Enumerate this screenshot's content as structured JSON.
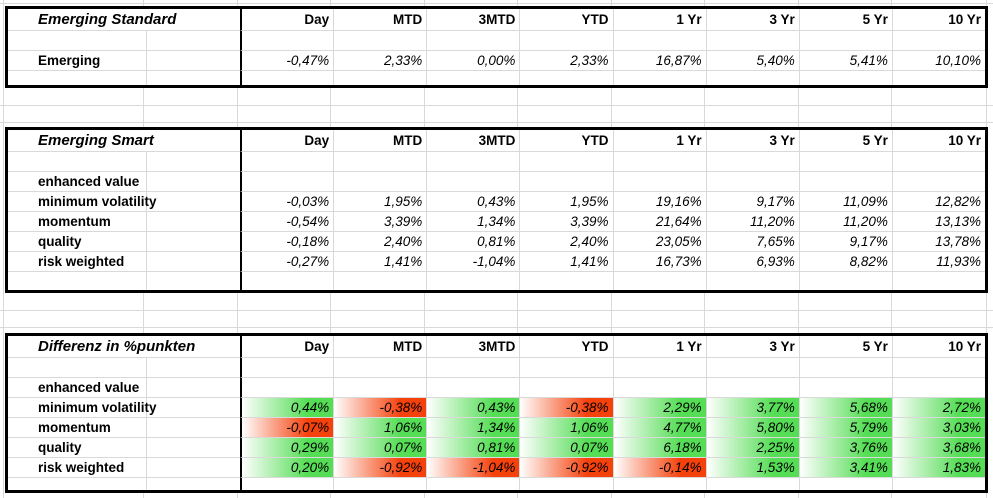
{
  "columns": [
    "Day",
    "MTD",
    "3MTD",
    "YTD",
    "1 Yr",
    "3 Yr",
    "5 Yr",
    "10 Yr"
  ],
  "colors": {
    "positive_fill": "#55dd55",
    "negative_fill": "#f5420d",
    "gridline": "#d9d9d9",
    "table_border": "#000000"
  },
  "sections": [
    {
      "title": "Emerging Standard",
      "rows": [
        {
          "label": "",
          "cells": [
            "",
            "",
            "",
            "",
            "",
            "",
            "",
            ""
          ]
        },
        {
          "label": "Emerging",
          "cells": [
            "-0,47%",
            "2,33%",
            "0,00%",
            "2,33%",
            "16,87%",
            "5,40%",
            "5,41%",
            "10,10%"
          ]
        },
        {
          "label": "",
          "cells": [
            "",
            "",
            "",
            "",
            "",
            "",
            "",
            ""
          ]
        }
      ]
    },
    {
      "title": "Emerging Smart",
      "rows": [
        {
          "label": "",
          "cells": [
            "",
            "",
            "",
            "",
            "",
            "",
            "",
            ""
          ]
        },
        {
          "label": "enhanced value",
          "cells": [
            "",
            "",
            "",
            "",
            "",
            "",
            "",
            ""
          ]
        },
        {
          "label": "minimum volatility",
          "cells": [
            "-0,03%",
            "1,95%",
            "0,43%",
            "1,95%",
            "19,16%",
            "9,17%",
            "11,09%",
            "12,82%"
          ]
        },
        {
          "label": "momentum",
          "cells": [
            "-0,54%",
            "3,39%",
            "1,34%",
            "3,39%",
            "21,64%",
            "11,20%",
            "11,20%",
            "13,13%"
          ]
        },
        {
          "label": "quality",
          "cells": [
            "-0,18%",
            "2,40%",
            "0,81%",
            "2,40%",
            "23,05%",
            "7,65%",
            "9,17%",
            "13,78%"
          ]
        },
        {
          "label": "risk weighted",
          "cells": [
            "-0,27%",
            "1,41%",
            "-1,04%",
            "1,41%",
            "16,73%",
            "6,93%",
            "8,82%",
            "11,93%"
          ]
        },
        {
          "label": "",
          "cells": [
            "",
            "",
            "",
            "",
            "",
            "",
            "",
            ""
          ]
        }
      ]
    },
    {
      "title": "Differenz in %punkten",
      "rows": [
        {
          "label": "",
          "cells": [
            "",
            "",
            "",
            "",
            "",
            "",
            "",
            ""
          ]
        },
        {
          "label": "enhanced value",
          "cells": [
            "",
            "",
            "",
            "",
            "",
            "",
            "",
            ""
          ]
        },
        {
          "label": "minimum volatility",
          "cells": [
            {
              "v": "0,44%",
              "c": "g"
            },
            {
              "v": "-0,38%",
              "c": "r"
            },
            {
              "v": "0,43%",
              "c": "g"
            },
            {
              "v": "-0,38%",
              "c": "r"
            },
            {
              "v": "2,29%",
              "c": "g"
            },
            {
              "v": "3,77%",
              "c": "g"
            },
            {
              "v": "5,68%",
              "c": "g"
            },
            {
              "v": "2,72%",
              "c": "g"
            }
          ]
        },
        {
          "label": "momentum",
          "cells": [
            {
              "v": "-0,07%",
              "c": "r"
            },
            {
              "v": "1,06%",
              "c": "g"
            },
            {
              "v": "1,34%",
              "c": "g"
            },
            {
              "v": "1,06%",
              "c": "g"
            },
            {
              "v": "4,77%",
              "c": "g"
            },
            {
              "v": "5,80%",
              "c": "g"
            },
            {
              "v": "5,79%",
              "c": "g"
            },
            {
              "v": "3,03%",
              "c": "g"
            }
          ]
        },
        {
          "label": "quality",
          "cells": [
            {
              "v": "0,29%",
              "c": "g"
            },
            {
              "v": "0,07%",
              "c": "g"
            },
            {
              "v": "0,81%",
              "c": "g"
            },
            {
              "v": "0,07%",
              "c": "g"
            },
            {
              "v": "6,18%",
              "c": "g"
            },
            {
              "v": "2,25%",
              "c": "g"
            },
            {
              "v": "3,76%",
              "c": "g"
            },
            {
              "v": "3,68%",
              "c": "g"
            }
          ]
        },
        {
          "label": "risk weighted",
          "cells": [
            {
              "v": "0,20%",
              "c": "g"
            },
            {
              "v": "-0,92%",
              "c": "r"
            },
            {
              "v": "-1,04%",
              "c": "r"
            },
            {
              "v": "-0,92%",
              "c": "r"
            },
            {
              "v": "-0,14%",
              "c": "r"
            },
            {
              "v": "1,53%",
              "c": "g"
            },
            {
              "v": "3,41%",
              "c": "g"
            },
            {
              "v": "1,83%",
              "c": "g"
            }
          ]
        },
        {
          "label": "",
          "cells": [
            "",
            "",
            "",
            "",
            "",
            "",
            "",
            ""
          ]
        }
      ]
    }
  ]
}
